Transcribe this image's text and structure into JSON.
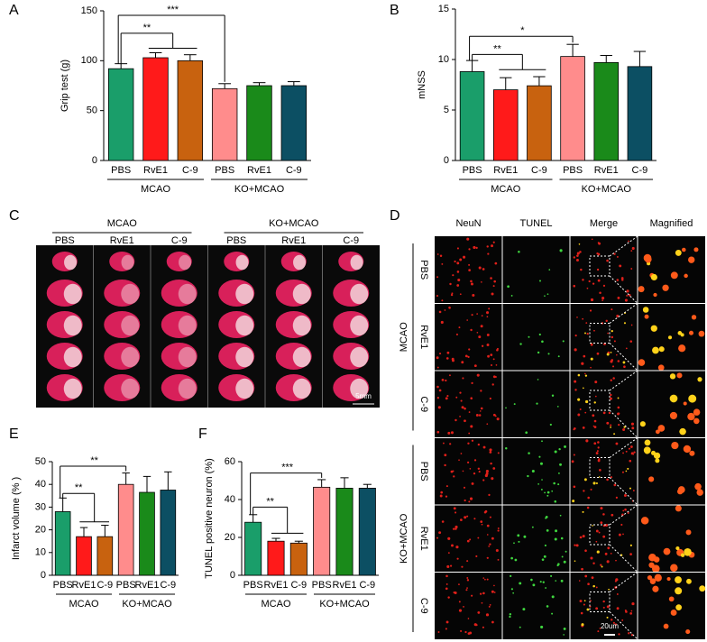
{
  "chart_data": [
    {
      "type": "bar",
      "panel": "A",
      "ylabel": "Grip test (g)",
      "ylim": [
        0,
        150
      ],
      "yticks": [
        0,
        50,
        100,
        150
      ],
      "categories": [
        "PBS",
        "RvE1",
        "C-9",
        "PBS",
        "RvE1",
        "C-9"
      ],
      "groups": [
        "MCAO",
        "KO+MCAO"
      ],
      "values": [
        92,
        103,
        100,
        72,
        75,
        75
      ],
      "errors": [
        5,
        5,
        6,
        5,
        3,
        4
      ],
      "colors": [
        "#1a9e6a",
        "#ff1a1a",
        "#c8620f",
        "#ff8c8c",
        "#1a8a1a",
        "#0c4f63"
      ],
      "annotations": [
        "**",
        "***"
      ]
    },
    {
      "type": "bar",
      "panel": "B",
      "ylabel": "mNSS",
      "ylim": [
        0,
        15
      ],
      "yticks": [
        0,
        5,
        10,
        15
      ],
      "categories": [
        "PBS",
        "RvE1",
        "C-9",
        "PBS",
        "RvE1",
        "C-9"
      ],
      "groups": [
        "MCAO",
        "KO+MCAO"
      ],
      "values": [
        8.8,
        7.0,
        7.4,
        10.3,
        9.7,
        9.3
      ],
      "errors": [
        1.1,
        1.2,
        0.9,
        1.2,
        0.7,
        1.5
      ],
      "colors": [
        "#1a9e6a",
        "#ff1a1a",
        "#c8620f",
        "#ff8c8c",
        "#1a8a1a",
        "#0c4f63"
      ],
      "annotations": [
        "**",
        "*"
      ]
    },
    {
      "type": "bar",
      "panel": "E",
      "ylabel": "Infarct volume (% )",
      "ylim": [
        0,
        50
      ],
      "yticks": [
        0,
        10,
        20,
        30,
        40,
        50
      ],
      "categories": [
        "PBS",
        "RvE1",
        "C-9",
        "PBS",
        "RvE1",
        "C-9"
      ],
      "groups": [
        "MCAO",
        "KO+MCAO"
      ],
      "values": [
        28,
        17,
        17,
        40,
        36.5,
        37.5
      ],
      "errors": [
        6,
        4,
        5,
        5,
        7,
        8
      ],
      "colors": [
        "#1a9e6a",
        "#ff1a1a",
        "#c8620f",
        "#ff8c8c",
        "#1a8a1a",
        "#0c4f63"
      ],
      "annotations": [
        "**",
        "**"
      ]
    },
    {
      "type": "bar",
      "panel": "F",
      "ylabel": "TUNEL positive neuron (%)",
      "ylim": [
        0,
        60
      ],
      "yticks": [
        0,
        20,
        40,
        60
      ],
      "categories": [
        "PBS",
        "RvE1",
        "C-9",
        "PBS",
        "RvE1",
        "C-9"
      ],
      "groups": [
        "MCAO",
        "KO+MCAO"
      ],
      "values": [
        28,
        18,
        17,
        46.5,
        46,
        46
      ],
      "errors": [
        4,
        1.5,
        1,
        4,
        5.5,
        2
      ],
      "colors": [
        "#1a9e6a",
        "#ff1a1a",
        "#c8620f",
        "#ff8c8c",
        "#1a8a1a",
        "#0c4f63"
      ],
      "annotations": [
        "**",
        "***"
      ]
    }
  ],
  "panel_c": {
    "panel": "C",
    "groups": [
      "MCAO",
      "KO+MCAO"
    ],
    "columns": [
      "PBS",
      "RvE1",
      "C-9",
      "PBS",
      "RvE1",
      "C-9"
    ],
    "scale_bar": "5mm"
  },
  "panel_d": {
    "panel": "D",
    "columns": [
      "NeuN",
      "TUNEL",
      "Merge",
      "Magnified"
    ],
    "groups": [
      "MCAO",
      "KO+MCAO"
    ],
    "rows": [
      "PBS",
      "RvE1",
      "C-9",
      "PBS",
      "RvE1",
      "C-9"
    ],
    "scale_bar": "20um"
  }
}
